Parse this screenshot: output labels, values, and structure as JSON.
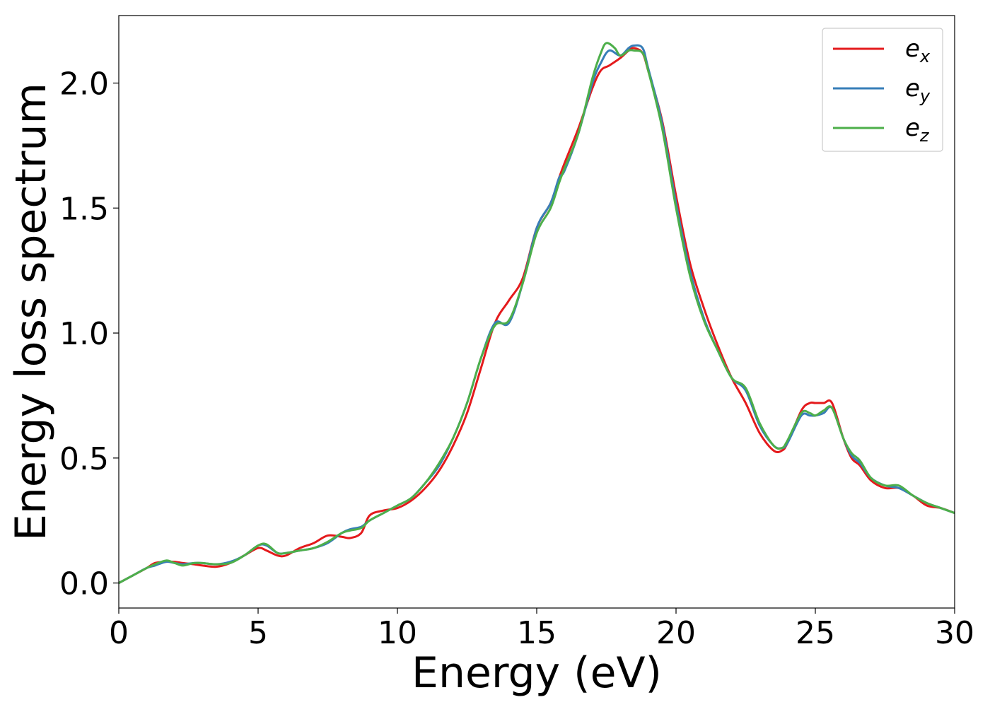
{
  "chart_data": {
    "type": "line",
    "title": "",
    "xlabel": "Energy (eV)",
    "ylabel": "Energy loss spectrum",
    "xlim": [
      0,
      30
    ],
    "ylim": [
      -0.1,
      2.27
    ],
    "xticks": [
      0,
      5,
      10,
      15,
      20,
      25,
      30
    ],
    "xtick_labels": [
      "0",
      "5",
      "10",
      "15",
      "20",
      "25",
      "30"
    ],
    "yticks": [
      0.0,
      0.5,
      1.0,
      1.5,
      2.0
    ],
    "ytick_labels": [
      "0.0",
      "0.5",
      "1.0",
      "1.5",
      "2.0"
    ],
    "grid": false,
    "legend_position": "top-right",
    "series": [
      {
        "name": "e_x",
        "label_base": "e",
        "label_sub": "x",
        "color": "#e41a1c",
        "x": [
          0,
          0.5,
          1,
          1.3,
          1.7,
          2,
          2.3,
          2.7,
          3,
          3.5,
          4,
          4.5,
          5,
          5.3,
          5.7,
          6,
          6.5,
          7,
          7.5,
          8,
          8.3,
          8.7,
          9,
          9.5,
          10,
          10.5,
          11,
          11.5,
          12,
          12.5,
          13,
          13.5,
          14,
          14.5,
          15,
          15.5,
          15.8,
          16,
          16.5,
          17,
          17.3,
          17.6,
          18,
          18.3,
          18.5,
          18.8,
          19,
          19.5,
          20,
          20.5,
          21,
          21.5,
          22,
          22.5,
          23,
          23.5,
          23.8,
          24,
          24.5,
          24.8,
          25,
          25.3,
          25.6,
          26,
          26.3,
          26.6,
          27,
          27.5,
          28,
          28.5,
          29,
          29.5,
          30
        ],
        "y": [
          0,
          0.03,
          0.06,
          0.08,
          0.085,
          0.085,
          0.08,
          0.075,
          0.07,
          0.065,
          0.08,
          0.11,
          0.14,
          0.13,
          0.11,
          0.11,
          0.14,
          0.16,
          0.19,
          0.185,
          0.18,
          0.2,
          0.27,
          0.29,
          0.3,
          0.33,
          0.38,
          0.45,
          0.55,
          0.68,
          0.86,
          1.04,
          1.13,
          1.22,
          1.42,
          1.52,
          1.62,
          1.68,
          1.82,
          1.98,
          2.05,
          2.07,
          2.1,
          2.13,
          2.14,
          2.12,
          2.05,
          1.85,
          1.55,
          1.28,
          1.1,
          0.95,
          0.82,
          0.72,
          0.6,
          0.53,
          0.53,
          0.56,
          0.69,
          0.72,
          0.72,
          0.72,
          0.72,
          0.58,
          0.5,
          0.47,
          0.41,
          0.38,
          0.38,
          0.35,
          0.31,
          0.3,
          0.28
        ]
      },
      {
        "name": "e_y",
        "label_base": "e",
        "label_sub": "y",
        "color": "#377eb8",
        "x": [
          0,
          0.5,
          1,
          1.3,
          1.7,
          2,
          2.3,
          2.7,
          3,
          3.5,
          4,
          4.5,
          5,
          5.3,
          5.7,
          6,
          6.5,
          7,
          7.5,
          8,
          8.3,
          8.7,
          9,
          9.5,
          10,
          10.5,
          11,
          11.5,
          12,
          12.5,
          13,
          13.5,
          14,
          14.5,
          15,
          15.5,
          15.8,
          16,
          16.5,
          17,
          17.3,
          17.6,
          18,
          18.3,
          18.5,
          18.8,
          19,
          19.5,
          20,
          20.5,
          21,
          21.5,
          22,
          22.5,
          23,
          23.5,
          23.8,
          24,
          24.5,
          24.8,
          25,
          25.3,
          25.6,
          26,
          26.3,
          26.6,
          27,
          27.5,
          28,
          28.5,
          29,
          29.5,
          30
        ],
        "y": [
          0,
          0.03,
          0.06,
          0.07,
          0.085,
          0.08,
          0.075,
          0.08,
          0.08,
          0.075,
          0.085,
          0.11,
          0.15,
          0.15,
          0.12,
          0.12,
          0.13,
          0.14,
          0.16,
          0.2,
          0.215,
          0.225,
          0.25,
          0.28,
          0.31,
          0.34,
          0.4,
          0.47,
          0.58,
          0.72,
          0.9,
          1.04,
          1.04,
          1.2,
          1.42,
          1.52,
          1.62,
          1.65,
          1.8,
          2.0,
          2.08,
          2.13,
          2.11,
          2.14,
          2.15,
          2.14,
          2.06,
          1.84,
          1.52,
          1.25,
          1.06,
          0.93,
          0.82,
          0.77,
          0.63,
          0.55,
          0.54,
          0.56,
          0.67,
          0.67,
          0.67,
          0.68,
          0.7,
          0.58,
          0.51,
          0.48,
          0.42,
          0.39,
          0.38,
          0.35,
          0.32,
          0.3,
          0.28
        ]
      },
      {
        "name": "e_z",
        "label_base": "e",
        "label_sub": "z",
        "color": "#4daf4a",
        "x": [
          0,
          0.5,
          1,
          1.3,
          1.7,
          2,
          2.3,
          2.7,
          3,
          3.5,
          4,
          4.5,
          5,
          5.3,
          5.7,
          6,
          6.5,
          7,
          7.5,
          8,
          8.3,
          8.7,
          9,
          9.5,
          10,
          10.5,
          11,
          11.5,
          12,
          12.5,
          13,
          13.5,
          14,
          14.5,
          15,
          15.5,
          15.8,
          16,
          16.5,
          17,
          17.3,
          17.5,
          17.8,
          18,
          18.3,
          18.5,
          18.8,
          19,
          19.5,
          20,
          20.5,
          21,
          21.5,
          22,
          22.5,
          23,
          23.5,
          23.8,
          24,
          24.5,
          24.8,
          25,
          25.3,
          25.6,
          26,
          26.3,
          26.6,
          27,
          27.5,
          28,
          28.5,
          29,
          29.5,
          30
        ],
        "y": [
          0,
          0.03,
          0.06,
          0.075,
          0.09,
          0.08,
          0.07,
          0.08,
          0.08,
          0.075,
          0.08,
          0.11,
          0.15,
          0.155,
          0.12,
          0.12,
          0.13,
          0.14,
          0.165,
          0.2,
          0.21,
          0.22,
          0.25,
          0.28,
          0.31,
          0.34,
          0.4,
          0.48,
          0.58,
          0.72,
          0.9,
          1.03,
          1.05,
          1.2,
          1.4,
          1.5,
          1.6,
          1.66,
          1.8,
          2.02,
          2.12,
          2.16,
          2.14,
          2.11,
          2.13,
          2.13,
          2.12,
          2.05,
          1.82,
          1.5,
          1.23,
          1.05,
          0.93,
          0.82,
          0.78,
          0.64,
          0.55,
          0.54,
          0.57,
          0.68,
          0.68,
          0.67,
          0.69,
          0.7,
          0.58,
          0.52,
          0.49,
          0.42,
          0.39,
          0.39,
          0.35,
          0.32,
          0.3,
          0.28
        ]
      }
    ]
  }
}
